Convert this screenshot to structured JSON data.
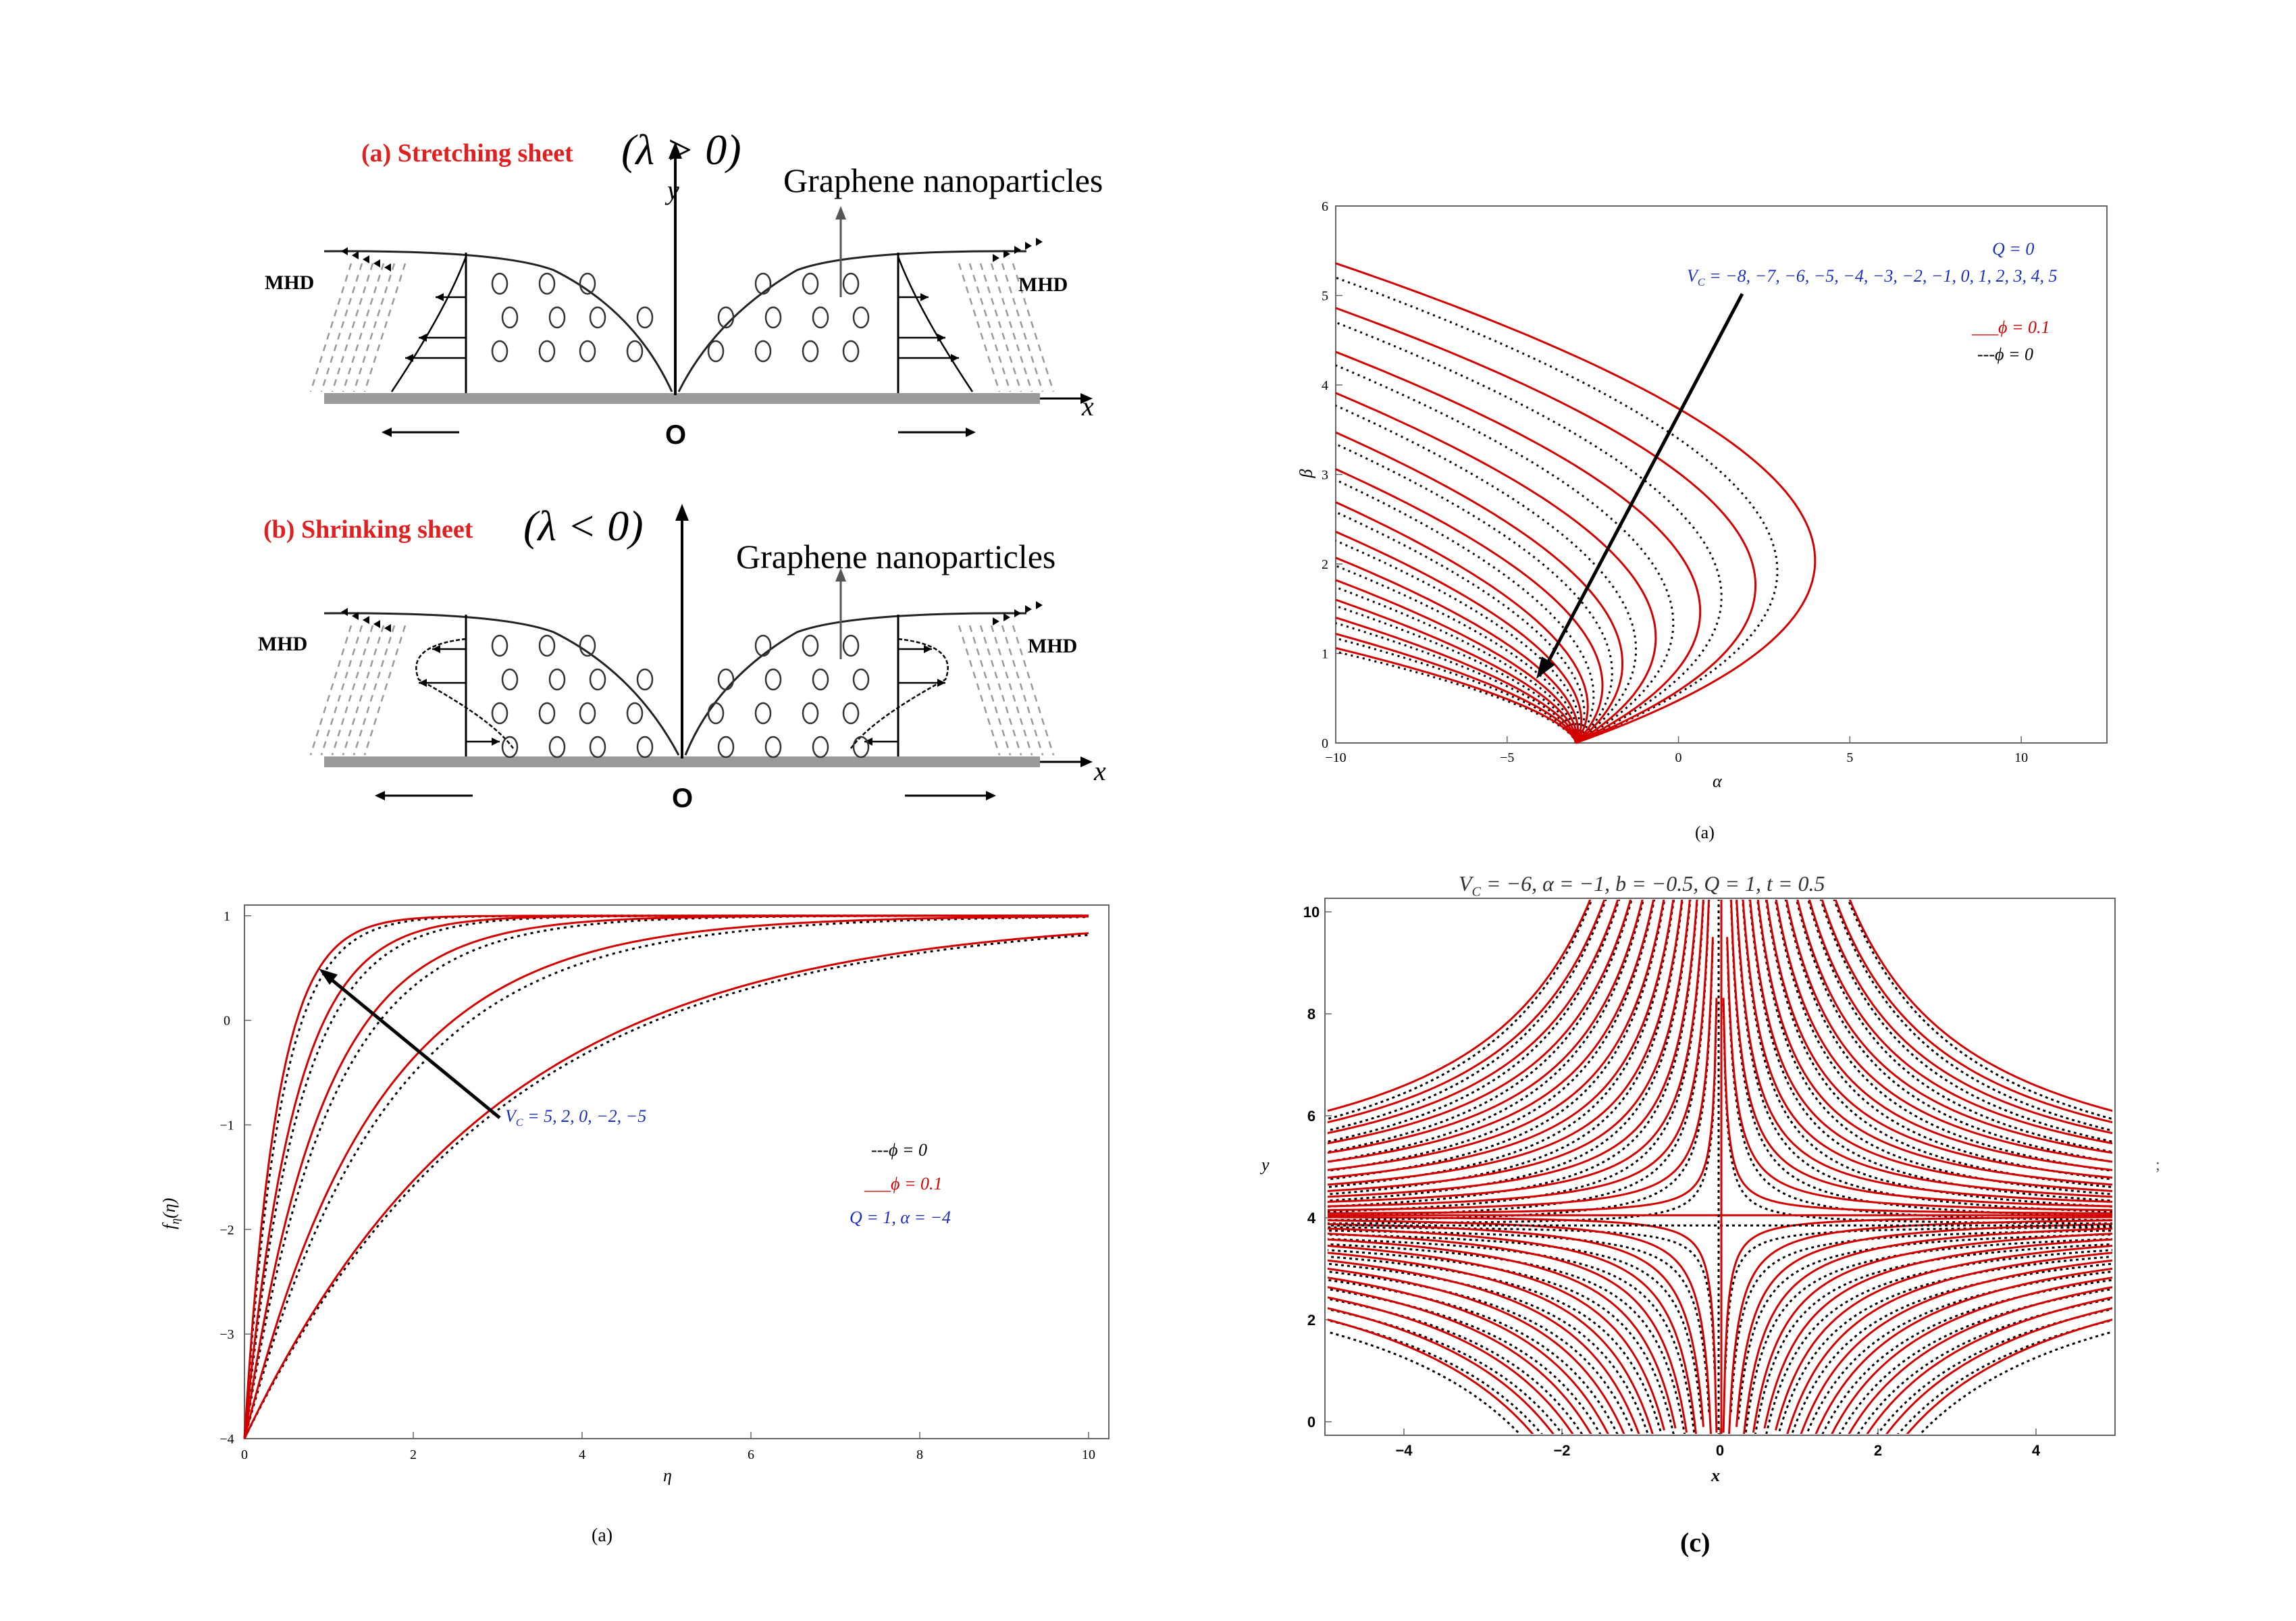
{
  "schematic": {
    "panel_a_heading": "(a) Stretching sheet",
    "panel_a_condition": "(λ > 0)",
    "panel_b_heading": "(b) Shrinking sheet",
    "panel_b_condition": "(λ < 0)",
    "nanoparticle_label": "Graphene nanoparticles",
    "mhd_label": "MHD",
    "x_axis": "x",
    "y_axis": "y",
    "origin": "O"
  },
  "plots": {
    "top_right": {
      "q_label": "Q = 0",
      "vc_label": "V",
      "vc_sub": "C",
      "vc_values": " = −8, −7, −6, −5, −4, −3, −2, −1, 0, 1, 2, 3, 4, 5",
      "legend_red": "___ϕ = 0.1",
      "legend_black": "---ϕ = 0",
      "ylabel": "β",
      "xlabel": "α",
      "caption": "(a)",
      "xticks": [
        "−10",
        "−5",
        "0",
        "5",
        "10"
      ],
      "yticks": [
        "0",
        "1",
        "2",
        "3",
        "4",
        "5",
        "6"
      ]
    },
    "bottom_left": {
      "vc_label": "V",
      "vc_sub": "C",
      "vc_values": " = 5, 2, 0, −2, −5",
      "legend_black": "---ϕ = 0",
      "legend_red": "___ϕ = 0.1",
      "params": "Q = 1, α = −4",
      "ylabel": "f",
      "ylabel_sub": "η",
      "ylabel_arg": "(η)",
      "xlabel": "η",
      "caption": "(a)",
      "xticks": [
        "0",
        "2",
        "4",
        "6",
        "8",
        "10"
      ],
      "yticks": [
        "1",
        "0",
        "−1",
        "−2",
        "−3",
        "−4"
      ]
    },
    "bottom_right": {
      "title": "V",
      "title_sub": "C",
      "title_rest": " = −6,  α = −1,  b = −0.5,  Q = 1,  t = 0.5",
      "ylabel": "y",
      "xlabel": "x",
      "caption": "(c)",
      "stray_mark": ";",
      "xticks": [
        "−4",
        "−2",
        "0",
        "2",
        "4"
      ],
      "yticks": [
        "0",
        "2",
        "4",
        "6",
        "8",
        "10"
      ]
    }
  },
  "chart_data": [
    {
      "type": "line",
      "title": "",
      "xlabel": "α",
      "ylabel": "β",
      "xlim": [
        -10,
        12.5
      ],
      "ylim": [
        0,
        6
      ],
      "vertex_alpha": -3,
      "series_red_vertex_beta": [
        5.36,
        4.86,
        4.37,
        3.91,
        3.47,
        3.06,
        2.69,
        2.36,
        2.07,
        1.82,
        1.6,
        1.4,
        1.22,
        1.06
      ],
      "series_black_vertex_beta": [
        5.2,
        4.7,
        4.22,
        3.77,
        3.34,
        2.94,
        2.58,
        2.26,
        1.98,
        1.74,
        1.53,
        1.34,
        1.17,
        1.02
      ],
      "series_red_max_alpha": [
        6.2,
        4.3,
        2.5,
        1.0,
        -0.2,
        -1.0,
        -1.7,
        -2.1,
        -2.4,
        -2.6,
        -2.75,
        -2.85,
        -2.92,
        -2.96
      ],
      "series_black_max_alpha": [
        5.0,
        3.2,
        1.6,
        0.3,
        -0.6,
        -1.4,
        -1.9,
        -2.25,
        -2.5,
        -2.68,
        -2.8,
        -2.88,
        -2.94,
        -2.98
      ],
      "series": [
        {
          "name": "ϕ = 0.1",
          "color": "#d40000",
          "style": "solid"
        },
        {
          "name": "ϕ = 0",
          "color": "#000000",
          "style": "dotted"
        }
      ],
      "annotation": "V_C = −8, −7, −6, −5, −4, −3, −2, −1, 0, 1, 2, 3, 4, 5"
    },
    {
      "type": "line",
      "title": "",
      "xlabel": "η",
      "ylabel": "f_η(η)",
      "xlim": [
        0,
        10
      ],
      "ylim": [
        -4,
        1
      ],
      "start_value": -4,
      "asymptote": 1,
      "series_red_decay_rates": [
        2.6,
        1.7,
        1.1,
        0.65,
        0.34
      ],
      "series_black_decay_rates": [
        2.35,
        1.55,
        1.0,
        0.6,
        0.33
      ],
      "series": [
        {
          "name": "ϕ = 0.1",
          "color": "#d40000",
          "style": "solid"
        },
        {
          "name": "ϕ = 0",
          "color": "#000000",
          "style": "dashed"
        }
      ],
      "annotation": "V_C = 5, 2, 0, −2, −5",
      "params": "Q = 1, α = −4"
    },
    {
      "type": "line",
      "title": "V_C = −6, α = −1, b = −0.5, Q = 1, t = 0.5",
      "xlabel": "x",
      "ylabel": "y",
      "xlim": [
        -5,
        5
      ],
      "ylim": [
        0,
        10
      ],
      "stagnation_x": 0,
      "stagnation_y_red": 4.05,
      "stagnation_y_black": 3.85,
      "streamline_levels": [
        0.3,
        0.8,
        1.4,
        2.1,
        2.9,
        3.8,
        4.8,
        5.9,
        7.1,
        8.4,
        9.8,
        11.3,
        12.9,
        14.6,
        16.4
      ],
      "series": [
        {
          "name": "",
          "color": "#d40000",
          "style": "solid"
        },
        {
          "name": "",
          "color": "#000000",
          "style": "dashed"
        }
      ]
    }
  ]
}
